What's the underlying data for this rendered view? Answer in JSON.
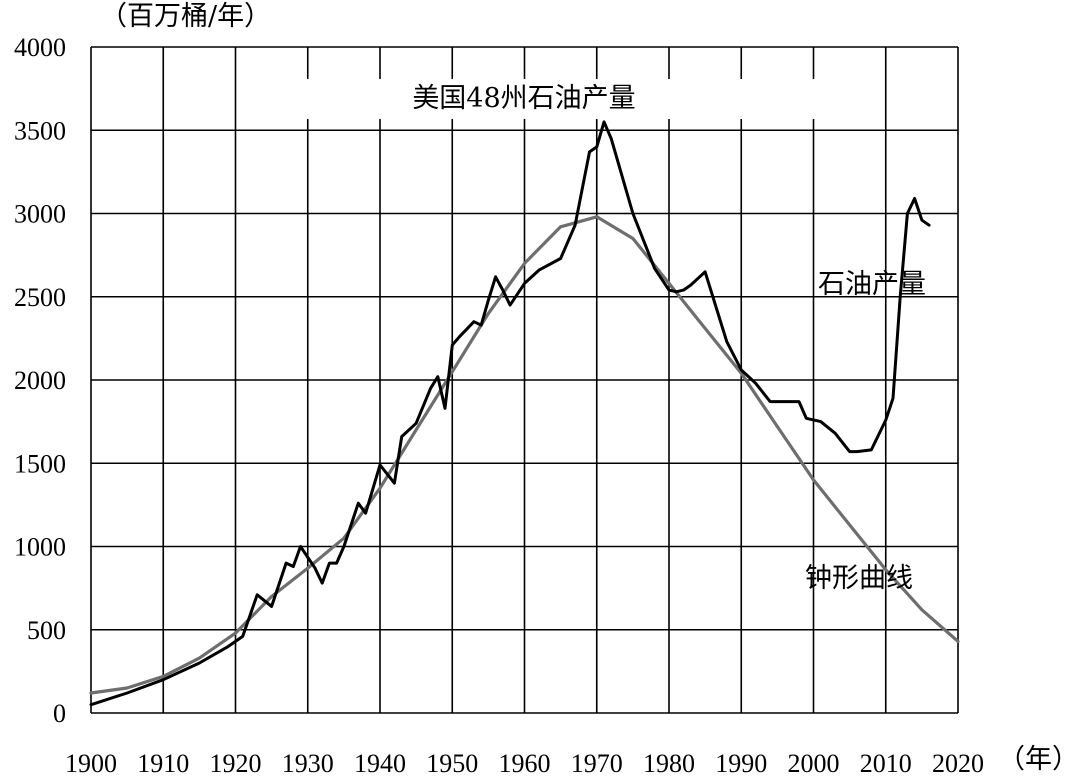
{
  "chart_data": {
    "type": "line",
    "title": "美国48州石油产量",
    "ylabel": "（百万桶/年）",
    "xlabel": "（年）",
    "xlim": [
      1900,
      2020
    ],
    "ylim": [
      0,
      4000
    ],
    "xticks": [
      1900,
      1910,
      1920,
      1930,
      1940,
      1950,
      1960,
      1970,
      1980,
      1990,
      2000,
      2010,
      2020
    ],
    "yticks": [
      0,
      500,
      1000,
      1500,
      2000,
      2500,
      3000,
      3500,
      4000
    ],
    "grid": true,
    "legend": "none",
    "series": [
      {
        "name": "石油产量",
        "color": "#000000",
        "x": [
          1900,
          1905,
          1910,
          1915,
          1919,
          1921,
          1923,
          1925,
          1927,
          1928,
          1929,
          1931,
          1932,
          1933,
          1934,
          1935,
          1937,
          1938,
          1940,
          1942,
          1943,
          1945,
          1947,
          1948,
          1949,
          1950,
          1951,
          1953,
          1954,
          1955,
          1956,
          1957,
          1958,
          1960,
          1962,
          1965,
          1967,
          1968,
          1969,
          1970,
          1971,
          1972,
          1975,
          1978,
          1980,
          1981,
          1982,
          1983,
          1985,
          1988,
          1990,
          1992,
          1994,
          1996,
          1998,
          1999,
          2001,
          2003,
          2005,
          2006,
          2008,
          2010,
          2011,
          2012,
          2013,
          2014,
          2015,
          2016
        ],
        "values": [
          50,
          120,
          200,
          300,
          400,
          460,
          710,
          640,
          900,
          880,
          1000,
          870,
          780,
          900,
          900,
          1000,
          1260,
          1200,
          1490,
          1380,
          1660,
          1740,
          1950,
          2020,
          1830,
          2210,
          2260,
          2350,
          2330,
          2480,
          2620,
          2540,
          2450,
          2580,
          2660,
          2730,
          2930,
          3150,
          3370,
          3400,
          3550,
          3450,
          3000,
          2670,
          2540,
          2530,
          2540,
          2570,
          2650,
          2230,
          2060,
          1980,
          1870,
          1870,
          1870,
          1770,
          1750,
          1680,
          1570,
          1570,
          1580,
          1760,
          1890,
          2500,
          3000,
          3090,
          2960,
          2930
        ]
      },
      {
        "name": "钟形曲线",
        "color": "#6e6e6e",
        "x": [
          1900,
          1905,
          1910,
          1915,
          1920,
          1925,
          1930,
          1935,
          1940,
          1945,
          1950,
          1955,
          1960,
          1965,
          1970,
          1975,
          1980,
          1985,
          1990,
          1995,
          2000,
          2005,
          2010,
          2015,
          2020
        ],
        "values": [
          120,
          150,
          220,
          330,
          480,
          700,
          870,
          1050,
          1350,
          1700,
          2050,
          2400,
          2700,
          2920,
          2980,
          2850,
          2580,
          2310,
          2040,
          1720,
          1400,
          1130,
          860,
          620,
          430
        ]
      }
    ],
    "annotations": {
      "oil_label": "石油产量",
      "bell_label": "钟形曲线"
    }
  }
}
